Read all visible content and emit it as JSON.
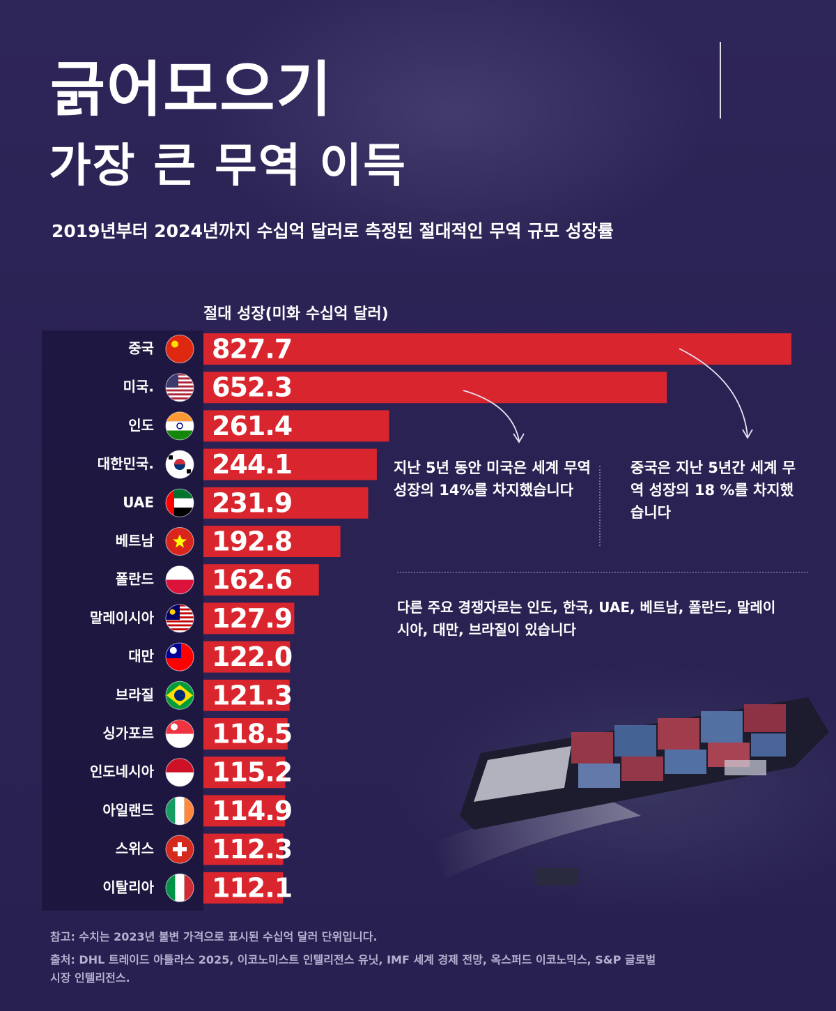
{
  "title_line1": "긁어모으기",
  "title_line2": "가장 큰 무역 이득",
  "subtitle": "2019년부터 2024년까지 수십억 달러로 측정된 절대적인 무역 규모 성장률",
  "colors": {
    "bar": "#d9252d",
    "background": "#2a2252",
    "text": "#ffffff"
  },
  "chart_data": {
    "type": "bar",
    "orientation": "horizontal",
    "xlabel": "절대 성장(미화 수십억 달러)",
    "categories": [
      "중국",
      "미국.",
      "인도",
      "대한민국.",
      "UAE",
      "베트남",
      "폴란드",
      "말레이시아",
      "대만",
      "브라질",
      "싱가포르",
      "인도네시아",
      "아일랜드",
      "스위스",
      "이탈리아"
    ],
    "flags": [
      "china-flag",
      "usa-flag",
      "india-flag",
      "south-korea-flag",
      "uae-flag",
      "vietnam-flag",
      "poland-flag",
      "malaysia-flag",
      "taiwan-flag",
      "brazil-flag",
      "singapore-flag",
      "indonesia-flag",
      "ireland-flag",
      "switzerland-flag",
      "italy-flag"
    ],
    "values": [
      827.7,
      652.3,
      261.4,
      244.1,
      231.9,
      192.8,
      162.6,
      127.9,
      122.0,
      121.3,
      118.5,
      115.2,
      114.9,
      112.3,
      112.1
    ],
    "value_labels": [
      "827.7",
      "652.3",
      "261.4",
      "244.1",
      "231.9",
      "192.8",
      "162.6",
      "127.9",
      "122.0",
      "121.3",
      "118.5",
      "115.2",
      "114.9",
      "112.3",
      "112.1"
    ],
    "xlim": [
      0,
      827.7
    ],
    "grid": false,
    "legend": "none"
  },
  "annotations": {
    "us_note": "지난 5년 동안 미국은 세계 무역 성장의 14%를 차지했습니다",
    "china_note": "중국은 지난 5년간 세계 무역 성장의 18 %를 차지했습니다",
    "others_note": "다른 주요 경쟁자로는 인도, 한국, UAE, 베트남, 폴란드, 말레이시아, 대만, 브라질이 있습니다"
  },
  "footnote": "참고: 수치는 2023년 불변 가격으로 표시된 수십억 달러 단위입니다.",
  "source": "출처: DHL 트레이드 아틀라스 2025, 이코노미스트 인텔리전스 유닛, IMF 세계 경제 전망, 옥스퍼드 이코노믹스, S&P 글로벌 시장 인텔리전스."
}
